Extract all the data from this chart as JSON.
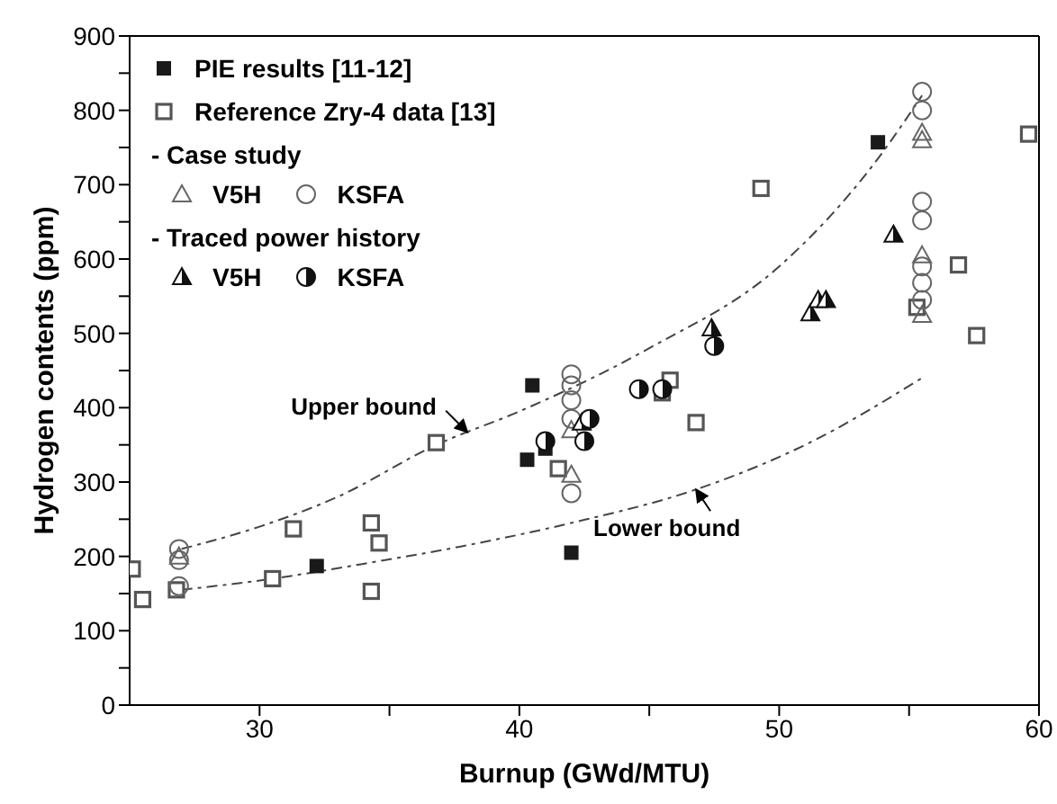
{
  "chart_data": {
    "type": "scatter",
    "xlabel": "Burnup (GWd/MTU)",
    "ylabel": "Hydrogen contents (ppm)",
    "xlim": [
      25,
      60
    ],
    "xticks": [
      30,
      {
        "value": 35,
        "label": null
      },
      40,
      {
        "value": 45,
        "label": null
      },
      50,
      {
        "value": 55,
        "label": null
      },
      60
    ],
    "ylim": [
      0,
      900
    ],
    "yticks": [
      0,
      {
        "value": 50,
        "label": null
      },
      100,
      {
        "value": 150,
        "label": null
      },
      200,
      {
        "value": 250,
        "label": null
      },
      300,
      {
        "value": 350,
        "label": null
      },
      400,
      {
        "value": 450,
        "label": null
      },
      500,
      {
        "value": 550,
        "label": null
      },
      600,
      {
        "value": 650,
        "label": null
      },
      700,
      {
        "value": 750,
        "label": null
      },
      800,
      {
        "value": 850,
        "label": null
      },
      900
    ],
    "grid": false,
    "legend": "top left",
    "annotations": [
      "- Case study",
      "- Traced power history",
      {
        "text": "Upper bound",
        "x": 38,
        "y": 367
      },
      {
        "text": "Lower bound",
        "x": 46.8,
        "y": 290
      }
    ],
    "series": [
      {
        "name": "PIE results [11-12]",
        "color": "#1a1a1a",
        "marker": "square",
        "x": [
          40.5,
          40.3,
          41.0,
          42.0,
          32.2,
          53.8
        ],
        "values": [
          430,
          330,
          345,
          205,
          187,
          757
        ]
      },
      {
        "name": "Reference Zry-4 data [13]",
        "color": "#555555",
        "marker": "square-open",
        "x": [
          25.1,
          25.5,
          26.8,
          30.5,
          31.3,
          34.3,
          34.6,
          34.3,
          36.8,
          41.5,
          45.5,
          45.8,
          46.8,
          49.3,
          55.3,
          56.9,
          57.6,
          59.6
        ],
        "values": [
          183,
          142,
          155,
          170,
          237,
          245,
          218,
          153,
          353,
          318,
          420,
          437,
          380,
          695,
          535,
          592,
          497,
          768
        ]
      },
      {
        "name": "V5H",
        "color": "#666666",
        "marker": "triangle-open",
        "x": [
          42.0,
          42.0,
          55.5,
          55.5,
          55.5,
          55.5,
          26.9
        ],
        "values": [
          310,
          370,
          770,
          760,
          605,
          525,
          200
        ]
      },
      {
        "name": "KSFA",
        "color": "#666666",
        "marker": "circle-open",
        "x": [
          26.9,
          26.9,
          26.9,
          42.0,
          42.0,
          42.0,
          42.0,
          42.0,
          55.5,
          55.5,
          55.5,
          55.5,
          55.5,
          55.5,
          55.5
        ],
        "values": [
          210,
          195,
          160,
          445,
          430,
          410,
          385,
          285,
          825,
          800,
          677,
          652,
          590,
          568,
          545
        ]
      },
      {
        "name": "V5H",
        "color": "#111111",
        "marker": "triangle-half",
        "x": [
          47.4,
          51.2,
          51.5,
          51.8,
          54.4,
          42.4
        ],
        "values": [
          507,
          527,
          545,
          545,
          633,
          380
        ]
      },
      {
        "name": "KSFA",
        "color": "#111111",
        "marker": "circle-half",
        "x": [
          44.6,
          47.5,
          45.5,
          41.0,
          42.7,
          42.5
        ],
        "values": [
          425,
          483,
          425,
          355,
          385,
          355
        ]
      },
      {
        "type": "line",
        "color": "#444444",
        "line_style": "dashed",
        "marker": "none",
        "x": [
          27,
          30,
          33,
          36.8,
          40,
          45,
          50,
          53.8,
          55.5
        ],
        "values": [
          210,
          240,
          280,
          350,
          395,
          480,
          590,
          735,
          820
        ]
      },
      {
        "type": "line",
        "color": "#444444",
        "line_style": "dashed",
        "marker": "none",
        "x": [
          27,
          30.5,
          34,
          38,
          42,
          46.8,
          51,
          55.5
        ],
        "values": [
          155,
          170,
          190,
          215,
          245,
          290,
          350,
          440
        ]
      }
    ]
  }
}
